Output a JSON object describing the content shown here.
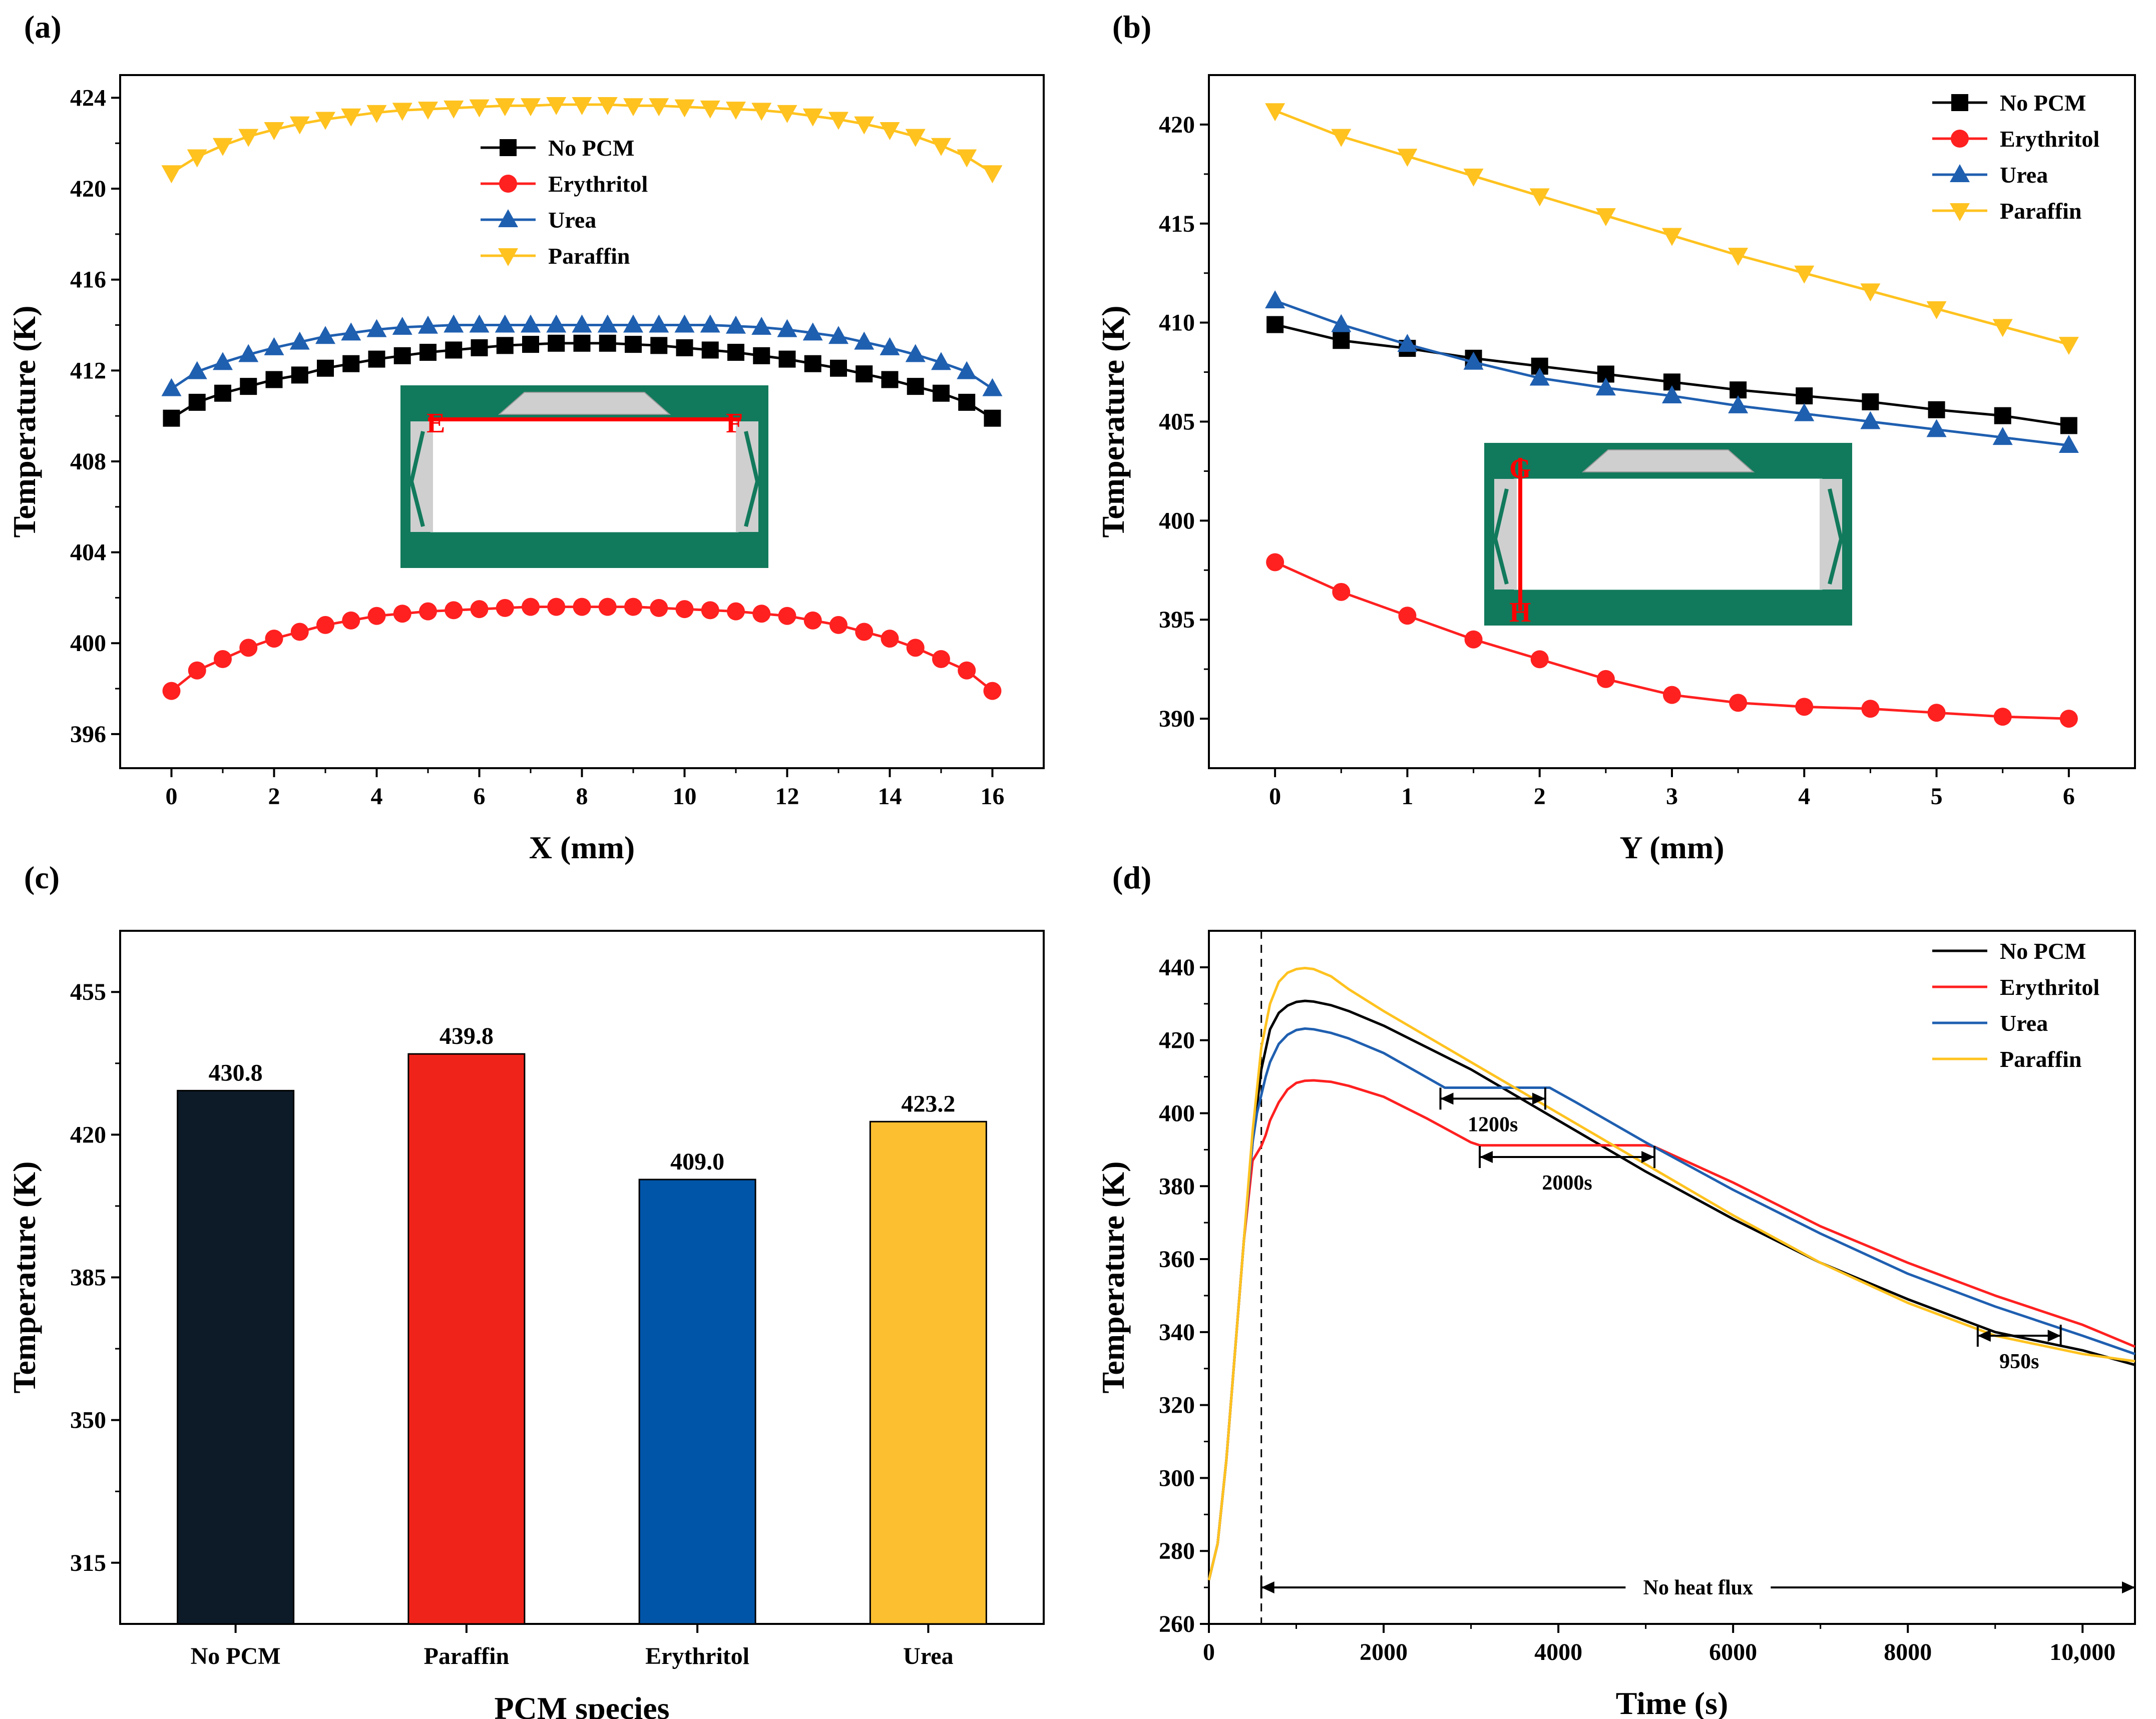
{
  "panel_labels": [
    "(a)",
    "(b)",
    "(c)",
    "(d)"
  ],
  "colors": {
    "no_pcm": "#000000",
    "erythritol": "#ff2020",
    "urea": "#1f5fb0",
    "paraffin": "#ffc21f",
    "inset_green": "#127a5c",
    "inset_gray": "#cfcfcf",
    "inset_line": "#ff0000",
    "bar_no_pcm": "#0d1a28",
    "bar_paraffin": "#f0231a",
    "bar_erythritol": "#0055a8",
    "bar_urea": "#fbbf30"
  },
  "chart_data": [
    {
      "type": "line",
      "panel": "(a)",
      "xlabel": "X (mm)",
      "ylabel": "Temperature (K)",
      "xlim": [
        -1,
        17
      ],
      "ylim": [
        394.5,
        425
      ],
      "xticks": [
        0,
        2,
        4,
        6,
        8,
        10,
        12,
        14,
        16
      ],
      "yticks": [
        396,
        400,
        404,
        408,
        412,
        416,
        420,
        424
      ],
      "legend_position": "top-center",
      "inset": {
        "start_label": "E",
        "end_label": "F",
        "orientation": "horizontal"
      },
      "x": [
        0,
        0.5,
        1,
        1.5,
        2,
        2.5,
        3,
        3.5,
        4,
        4.5,
        5,
        5.5,
        6,
        6.5,
        7,
        7.5,
        8,
        8.5,
        9,
        9.5,
        10,
        10.5,
        11,
        11.5,
        12,
        12.5,
        13,
        13.5,
        14,
        14.5,
        15,
        15.5,
        16
      ],
      "series": [
        {
          "name": "No PCM",
          "key": "no_pcm",
          "marker": "square",
          "values": [
            409.9,
            410.6,
            411.0,
            411.3,
            411.6,
            411.8,
            412.1,
            412.3,
            412.5,
            412.65,
            412.8,
            412.9,
            413.0,
            413.1,
            413.15,
            413.2,
            413.2,
            413.2,
            413.15,
            413.1,
            413.0,
            412.9,
            412.8,
            412.65,
            412.5,
            412.3,
            412.1,
            411.85,
            411.6,
            411.3,
            411.0,
            410.6,
            409.9
          ]
        },
        {
          "name": "Erythritol",
          "key": "erythritol",
          "marker": "circle",
          "values": [
            397.9,
            398.8,
            399.3,
            399.8,
            400.2,
            400.5,
            400.8,
            401.0,
            401.2,
            401.3,
            401.4,
            401.45,
            401.5,
            401.55,
            401.6,
            401.6,
            401.6,
            401.6,
            401.6,
            401.55,
            401.5,
            401.45,
            401.4,
            401.3,
            401.2,
            401.0,
            400.8,
            400.5,
            400.2,
            399.8,
            399.3,
            398.8,
            397.9
          ]
        },
        {
          "name": "Urea",
          "key": "urea",
          "marker": "triangle-up",
          "values": [
            411.2,
            411.95,
            412.35,
            412.7,
            413.0,
            413.25,
            413.5,
            413.65,
            413.8,
            413.9,
            413.95,
            414.0,
            414.0,
            414.0,
            414.0,
            414.0,
            414.0,
            414.0,
            414.0,
            414.0,
            414.0,
            414.0,
            413.95,
            413.9,
            413.8,
            413.65,
            413.5,
            413.25,
            413.0,
            412.7,
            412.35,
            411.95,
            411.2
          ]
        },
        {
          "name": "Paraffin",
          "key": "paraffin",
          "marker": "triangle-down",
          "values": [
            420.7,
            421.4,
            421.9,
            422.3,
            422.6,
            422.85,
            423.05,
            423.2,
            423.35,
            423.45,
            423.5,
            423.55,
            423.6,
            423.65,
            423.65,
            423.7,
            423.7,
            423.7,
            423.65,
            423.65,
            423.6,
            423.55,
            423.5,
            423.45,
            423.35,
            423.2,
            423.05,
            422.85,
            422.6,
            422.3,
            421.9,
            421.4,
            420.7
          ]
        }
      ]
    },
    {
      "type": "line",
      "panel": "(b)",
      "xlabel": "Y (mm)",
      "ylabel": "Temperature (K)",
      "xlim": [
        -0.5,
        6.5
      ],
      "ylim": [
        387.5,
        422.5
      ],
      "xticks": [
        0,
        1,
        2,
        3,
        4,
        5,
        6
      ],
      "yticks": [
        390,
        395,
        400,
        405,
        410,
        415,
        420
      ],
      "legend_position": "top-right",
      "inset": {
        "start_label": "G",
        "end_label": "H",
        "orientation": "vertical"
      },
      "x": [
        0,
        0.5,
        1,
        1.5,
        2,
        2.5,
        3,
        3.5,
        4,
        4.5,
        5,
        5.5,
        6
      ],
      "series": [
        {
          "name": "No PCM",
          "key": "no_pcm",
          "marker": "square",
          "values": [
            409.9,
            409.1,
            408.7,
            408.2,
            407.8,
            407.4,
            407.0,
            406.6,
            406.3,
            406.0,
            405.6,
            405.3,
            404.8
          ]
        },
        {
          "name": "Erythritol",
          "key": "erythritol",
          "marker": "circle",
          "values": [
            397.9,
            396.4,
            395.2,
            394.0,
            393.0,
            392.0,
            391.2,
            390.8,
            390.6,
            390.5,
            390.3,
            390.1,
            390.0
          ]
        },
        {
          "name": "Urea",
          "key": "urea",
          "marker": "triangle-up",
          "values": [
            411.1,
            409.9,
            408.9,
            408.0,
            407.2,
            406.7,
            406.3,
            405.8,
            405.4,
            405.0,
            404.6,
            404.2,
            403.8
          ]
        },
        {
          "name": "Paraffin",
          "key": "paraffin",
          "marker": "triangle-down",
          "values": [
            420.7,
            419.4,
            418.4,
            417.4,
            416.4,
            415.4,
            414.4,
            413.4,
            412.5,
            411.6,
            410.7,
            409.8,
            408.9
          ]
        }
      ]
    },
    {
      "type": "bar",
      "panel": "(c)",
      "xlabel": "PCM species",
      "ylabel": "Temperature (K)",
      "ylim": [
        300,
        470
      ],
      "yticks": [
        315,
        350,
        385,
        420,
        455
      ],
      "categories": [
        "No PCM",
        "Paraffin",
        "Erythritol",
        "Urea"
      ],
      "values": [
        430.8,
        439.8,
        409.0,
        423.2
      ],
      "value_labels": [
        "430.8",
        "439.8",
        "409.0",
        "423.2"
      ],
      "bar_color_keys": [
        "bar_no_pcm",
        "bar_paraffin",
        "bar_erythritol",
        "bar_urea"
      ]
    },
    {
      "type": "line",
      "panel": "(d)",
      "xlabel": "Time (s)",
      "ylabel": "Temperature (K)",
      "xlim": [
        0,
        10600
      ],
      "ylim": [
        260,
        450
      ],
      "xticks": [
        0,
        2000,
        4000,
        6000,
        8000,
        10000
      ],
      "xtick_labels": [
        "0",
        "2000",
        "4000",
        "6000",
        "8000",
        "10,000"
      ],
      "yticks": [
        260,
        280,
        300,
        320,
        340,
        360,
        380,
        400,
        420,
        440
      ],
      "legend_position": "top-right",
      "heat_flux_off_time": 600,
      "series": [
        {
          "name": "No PCM",
          "key": "no_pcm",
          "x": [
            0,
            100,
            200,
            300,
            400,
            500,
            600,
            700,
            800,
            900,
            1000,
            1100,
            1200,
            1400,
            1600,
            2000,
            3000,
            4000,
            5000,
            6000,
            7000,
            8000,
            9000,
            10000,
            10600
          ],
          "values": [
            272,
            282,
            305,
            335,
            365,
            392,
            412,
            423,
            427.5,
            429.5,
            430.5,
            430.8,
            430.6,
            429.6,
            428,
            424,
            412,
            398,
            384,
            371,
            359,
            349,
            340,
            335,
            331
          ]
        },
        {
          "name": "Erythritol",
          "key": "erythritol",
          "x": [
            0,
            100,
            200,
            300,
            400,
            500,
            550,
            600,
            650,
            700,
            800,
            900,
            1000,
            1100,
            1200,
            1400,
            1600,
            2000,
            2500,
            3000,
            3100,
            4000,
            5000,
            5100,
            6000,
            7000,
            8000,
            9000,
            10000,
            10600
          ],
          "values": [
            272,
            282,
            305,
            335,
            365,
            387,
            389,
            391,
            394,
            398,
            403,
            406.5,
            408.3,
            408.9,
            409.0,
            408.6,
            407.5,
            404.5,
            398.5,
            392,
            391.2,
            391.2,
            391.2,
            390.8,
            381,
            369,
            359,
            350,
            342,
            336
          ]
        },
        {
          "name": "Urea",
          "key": "urea",
          "x": [
            0,
            100,
            200,
            300,
            400,
            500,
            550,
            600,
            650,
            700,
            800,
            900,
            1000,
            1100,
            1200,
            1400,
            1600,
            2000,
            2700,
            3900,
            4200,
            5000,
            6000,
            7000,
            8000,
            9000,
            10000,
            10600
          ],
          "values": [
            272,
            282,
            305,
            335,
            365,
            392,
            400,
            405,
            410,
            414,
            419,
            421.5,
            422.8,
            423.2,
            423.0,
            422,
            420.5,
            416.5,
            407,
            407,
            403,
            392,
            379,
            367,
            356,
            347,
            339,
            334
          ]
        },
        {
          "name": "Paraffin",
          "key": "paraffin",
          "x": [
            0,
            100,
            200,
            300,
            400,
            500,
            600,
            700,
            800,
            900,
            1000,
            1100,
            1200,
            1400,
            1600,
            2000,
            3000,
            4000,
            5000,
            6000,
            7000,
            8000,
            9000,
            10000,
            10600
          ],
          "values": [
            272,
            282,
            305,
            335,
            365,
            395,
            418,
            430,
            436,
            438.5,
            439.5,
            439.8,
            439.5,
            437.5,
            434,
            428,
            414,
            400,
            386,
            372,
            359,
            348,
            339,
            334,
            332
          ]
        }
      ],
      "annotations": [
        {
          "label": "1200s",
          "t_start": 2650,
          "t_end": 3850,
          "y": 404,
          "label_y": 397
        },
        {
          "label": "2000s",
          "t_start": 3100,
          "t_end": 5100,
          "y": 388,
          "label_y": 381
        },
        {
          "label": "950s",
          "t_start": 8800,
          "t_end": 9750,
          "y": 339,
          "label_y": 332
        },
        {
          "label": "No heat flux",
          "t_start": 600,
          "t_end": 10600,
          "y": 270,
          "label_y": 270
        }
      ]
    }
  ]
}
